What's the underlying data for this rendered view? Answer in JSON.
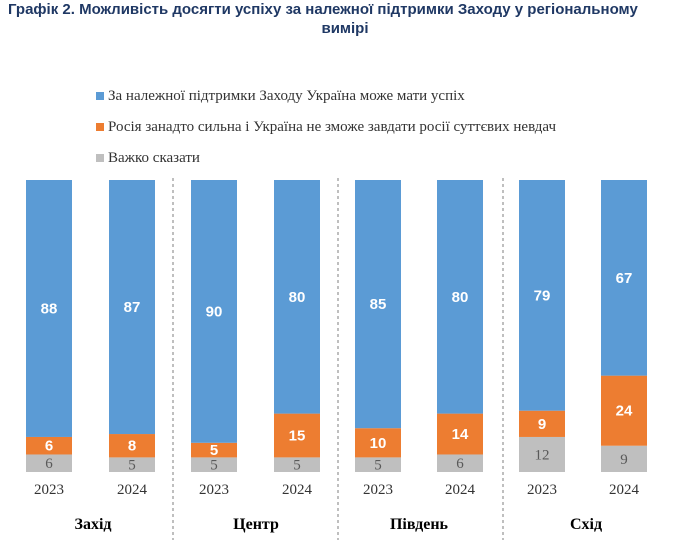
{
  "title": {
    "line1": "Графік 2. Можливість досягти успіху за належної підтримки Заходу у регіональному",
    "line2": "вимірі"
  },
  "colors": {
    "success": "#5B9BD5",
    "russia": "#ED7D31",
    "hard": "#BFBFBF"
  },
  "legend": {
    "items": [
      {
        "label": "За належної підтримки Заходу Україна може мати успіх",
        "color": "#5B9BD5"
      },
      {
        "label": "Росія занадто сильна і Україна не зможе завдати росії суттєвих невдач",
        "color": "#ED7D31"
      },
      {
        "label": "Важко сказати",
        "color": "#BFBFBF"
      }
    ]
  },
  "chart_data": {
    "type": "bar",
    "stacked": true,
    "groups": [
      "Захід",
      "Центр",
      "Південь",
      "Схід"
    ],
    "categories": [
      "2023",
      "2024",
      "2023",
      "2024",
      "2023",
      "2024",
      "2023",
      "2024"
    ],
    "series": [
      {
        "name": "За належної підтримки Заходу Україна може мати успіх",
        "values": [
          88,
          87,
          90,
          80,
          85,
          80,
          79,
          67
        ]
      },
      {
        "name": "Росія занадто сильна і Україна не зможе завдати росії суттєвих невдач",
        "values": [
          6,
          8,
          5,
          15,
          10,
          14,
          9,
          24
        ]
      },
      {
        "name": "Важко сказати",
        "values": [
          6,
          5,
          5,
          5,
          5,
          6,
          12,
          9
        ]
      }
    ],
    "ylim": [
      0,
      100
    ]
  }
}
